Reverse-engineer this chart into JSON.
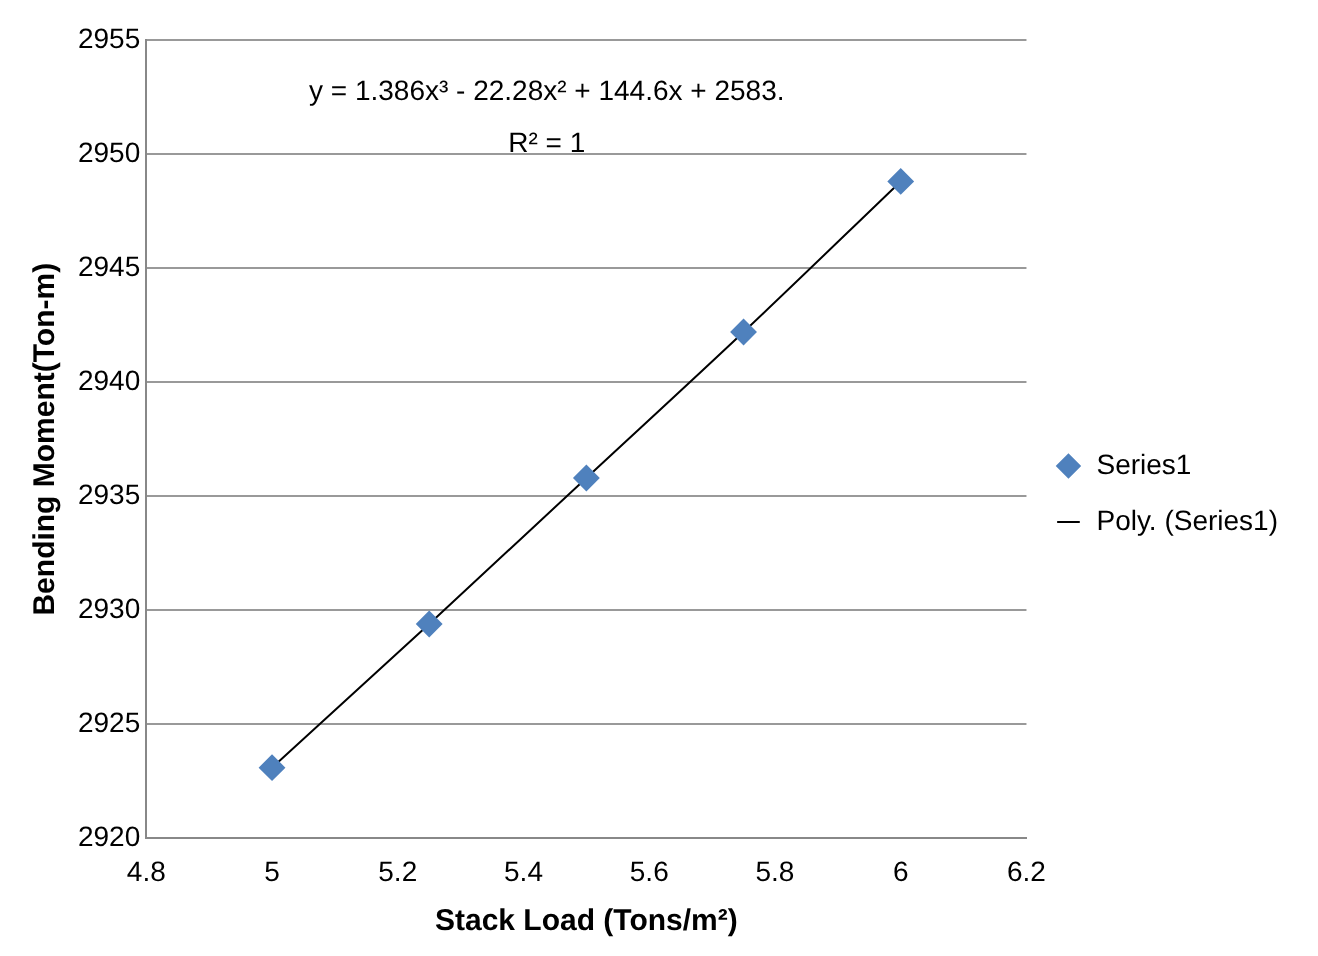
{
  "chart_data": {
    "type": "scatter",
    "xlabel": "Stack Load (Tons/m²)",
    "ylabel": "Bending Moment(Ton-m)",
    "x": [
      5,
      5.25,
      5.5,
      5.75,
      6
    ],
    "series": [
      {
        "name": "Series1",
        "color": "#4f81bd",
        "marker": "diamond",
        "values": [
          2923.1,
          2929.4,
          2935.8,
          2942.2,
          2948.8
        ]
      },
      {
        "name": "Poly. (Series1)",
        "type": "line",
        "color": "#000000",
        "marker": "none",
        "x": [
          5,
          5.25,
          5.5,
          5.75,
          6
        ],
        "values": [
          2923.1,
          2929.4,
          2935.8,
          2942.2,
          2948.8
        ]
      }
    ],
    "xlim": [
      4.8,
      6.2
    ],
    "xticks": [
      4.8,
      5,
      5.2,
      5.4,
      5.6,
      5.8,
      6,
      6.2
    ],
    "ylim": [
      2920,
      2955
    ],
    "yticks": [
      2920,
      2925,
      2930,
      2935,
      2940,
      2945,
      2950,
      2955
    ],
    "grid": "y",
    "legend": "right",
    "annotations": [
      "y = 1.386x³ - 22.28x² + 144.6x + 2583.",
      "R² = 1"
    ]
  }
}
